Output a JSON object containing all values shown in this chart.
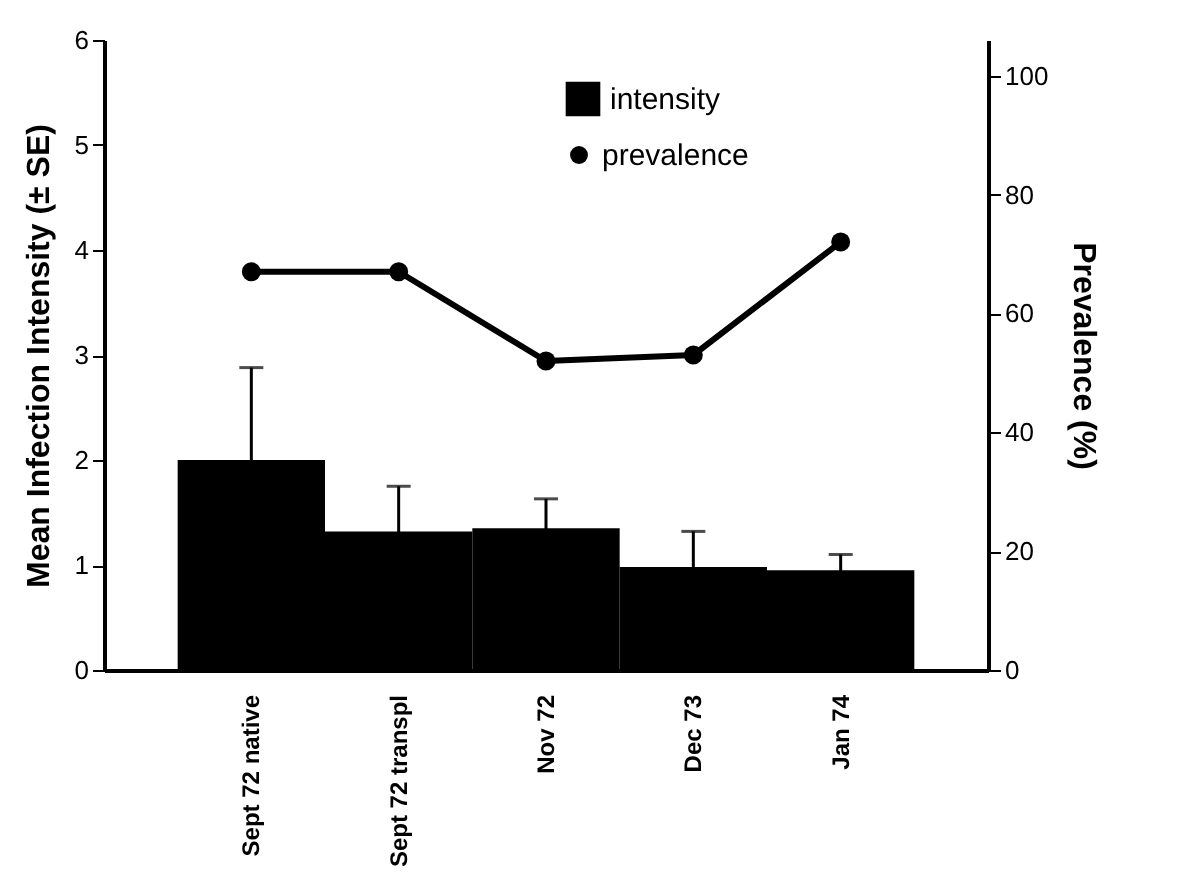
{
  "chart_data": {
    "type": "bar",
    "ylabel": "Mean Infection Intensity (± SE)",
    "y2label": "Prevalence (%)",
    "categories": [
      "Sept 72 native",
      "Sept 72 transpl",
      "Nov 72",
      "Dec 73",
      "Jan 74"
    ],
    "series": [
      {
        "name": "intensity",
        "color": "#000000",
        "values": [
          2.0,
          1.32,
          1.35,
          0.98,
          0.95
        ],
        "errors": [
          0.88,
          0.43,
          0.28,
          0.34,
          0.15
        ]
      },
      {
        "name": "prevalence",
        "type": "line",
        "axis": "y2",
        "color": "#000000",
        "values": [
          67,
          67,
          52,
          53,
          72
        ],
        "marker": "circle"
      }
    ],
    "ylim": [
      0,
      6
    ],
    "yticks": [
      0,
      1,
      2,
      3,
      4,
      5,
      6
    ],
    "y2lim": [
      0,
      106
    ],
    "y2ticks": [
      0,
      20,
      40,
      60,
      80,
      100
    ],
    "grid": false,
    "legend": "top"
  }
}
